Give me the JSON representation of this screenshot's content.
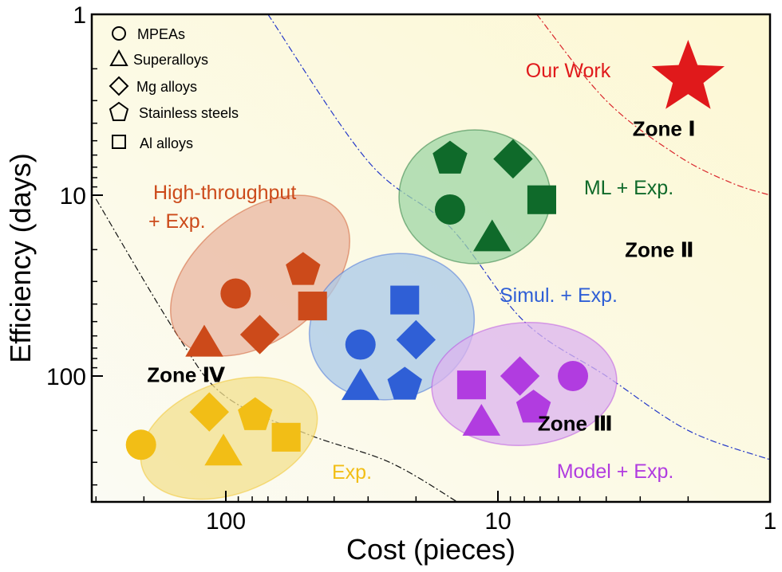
{
  "chart_data": {
    "type": "scatter",
    "title": "",
    "xlabel": "Cost (pieces)",
    "ylabel": "Efficiency (days)",
    "x_scale": "log",
    "y_scale": "log",
    "x_reversed": true,
    "y_reversed": true,
    "xlim": [
      300,
      1
    ],
    "ylim": [
      1,
      500
    ],
    "x_ticks": [
      {
        "value": 100,
        "label": "100"
      },
      {
        "value": 10,
        "label": "10"
      },
      {
        "value": 1,
        "label": "1"
      }
    ],
    "y_ticks": [
      {
        "value": 1,
        "label": "1"
      },
      {
        "value": 10,
        "label": "10"
      },
      {
        "value": 100,
        "label": "100"
      }
    ],
    "grid": false,
    "legend_position": "top-left",
    "legend": [
      {
        "shape": "circle",
        "label": "MPEAs"
      },
      {
        "shape": "triangle",
        "label": "Superalloys"
      },
      {
        "shape": "diamond",
        "label": "Mg alloys"
      },
      {
        "shape": "pentagon",
        "label": "Stainless steels"
      },
      {
        "shape": "square",
        "label": "Al alloys"
      }
    ],
    "groups": [
      {
        "label": "High-throughput\n+ Exp.",
        "color": "#cc4a1a",
        "fill": "#e9b6a0",
        "points": [
          {
            "shape": "circle",
            "x": 92,
            "y": 35
          },
          {
            "shape": "pentagon",
            "x": 52,
            "y": 26
          },
          {
            "shape": "square",
            "x": 48,
            "y": 41
          },
          {
            "shape": "diamond",
            "x": 75,
            "y": 59
          },
          {
            "shape": "triangle",
            "x": 120,
            "y": 65
          }
        ]
      },
      {
        "label": "Simul. + Exp.",
        "color": "#2f5fd6",
        "fill": "#a9c8e8",
        "points": [
          {
            "shape": "square",
            "x": 22,
            "y": 38
          },
          {
            "shape": "circle",
            "x": 32,
            "y": 67
          },
          {
            "shape": "diamond",
            "x": 20,
            "y": 63
          },
          {
            "shape": "triangle",
            "x": 32,
            "y": 113
          },
          {
            "shape": "pentagon",
            "x": 22,
            "y": 112
          }
        ]
      },
      {
        "label": "ML + Exp.",
        "color": "#0f6a2a",
        "fill": "#9fd6a6",
        "points": [
          {
            "shape": "pentagon",
            "x": 15,
            "y": 6.3
          },
          {
            "shape": "diamond",
            "x": 8.8,
            "y": 6.3
          },
          {
            "shape": "circle",
            "x": 15,
            "y": 12
          },
          {
            "shape": "square",
            "x": 6.9,
            "y": 10.6
          },
          {
            "shape": "triangle",
            "x": 10.5,
            "y": 17
          }
        ]
      },
      {
        "label": "Model + Exp.",
        "color": "#b13ce0",
        "fill": "#dcb3ef",
        "points": [
          {
            "shape": "circle",
            "x": 5.3,
            "y": 100
          },
          {
            "shape": "diamond",
            "x": 8.3,
            "y": 100
          },
          {
            "shape": "square",
            "x": 12.5,
            "y": 112
          },
          {
            "shape": "pentagon",
            "x": 7.4,
            "y": 150
          },
          {
            "shape": "triangle",
            "x": 11.5,
            "y": 178
          }
        ]
      },
      {
        "label": "Exp.",
        "color": "#f2be16",
        "fill": "#f3e08d",
        "points": [
          {
            "shape": "diamond",
            "x": 115,
            "y": 158
          },
          {
            "shape": "pentagon",
            "x": 78,
            "y": 165
          },
          {
            "shape": "square",
            "x": 60,
            "y": 218
          },
          {
            "shape": "circle",
            "x": 205,
            "y": 240
          },
          {
            "shape": "triangle",
            "x": 102,
            "y": 260
          }
        ]
      }
    ],
    "our_work": {
      "label": "Our Work",
      "shape": "star",
      "x": 2,
      "y": 2.25,
      "color": "#e0191b"
    },
    "zones": [
      {
        "label": "Zone Ⅰ",
        "x": 2.45,
        "y": 4.7
      },
      {
        "label": "Zone Ⅱ",
        "x": 2.55,
        "y": 22
      },
      {
        "label": "Zone Ⅲ",
        "x": 5.2,
        "y": 200
      },
      {
        "label": "Zone Ⅳ",
        "x": 140,
        "y": 108
      }
    ],
    "boundary_curves": [
      {
        "color": "#d9262c",
        "dash": "dash-dot",
        "points": [
          [
            7.2,
            1
          ],
          [
            4,
            3
          ],
          [
            2.2,
            6
          ],
          [
            1.4,
            8.5
          ],
          [
            1,
            10
          ]
        ]
      },
      {
        "color": "#2438c8",
        "dash": "dash-dot",
        "points": [
          [
            70,
            1
          ],
          [
            30,
            6.5
          ],
          [
            15,
            15
          ],
          [
            8,
            50
          ],
          [
            4,
            100
          ],
          [
            2,
            200
          ],
          [
            1,
            290
          ]
        ]
      },
      {
        "color": "#111111",
        "dash": "dash-dot",
        "points": [
          [
            300,
            10.5
          ],
          [
            150,
            60
          ],
          [
            100,
            130
          ],
          [
            50,
            210
          ],
          [
            25,
            300
          ],
          [
            14,
            500
          ]
        ]
      }
    ]
  }
}
